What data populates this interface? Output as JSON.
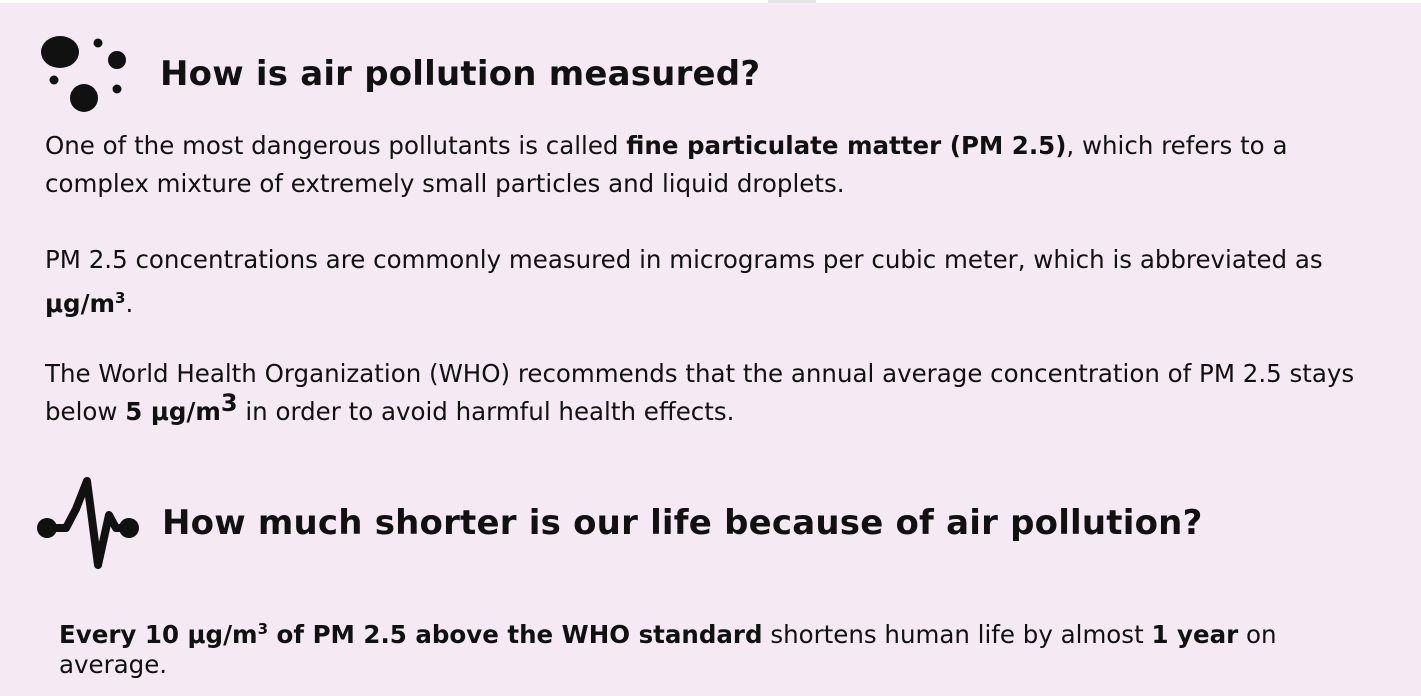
{
  "section1": {
    "icon": "particles-icon",
    "title": "How is air pollution measured?",
    "p1": {
      "t1": "One of the most dangerous pollutants is called ",
      "b1": "fine particulate matter (PM 2.5)",
      "t2": ", which refers to a complex mixture of extremely small particles and liquid droplets."
    },
    "p2": {
      "t1": "PM 2.5 concentrations are commonly measured in micrograms per cubic meter, which is abbreviated as ",
      "unit": "μg/m",
      "sup": "3",
      "t2": "."
    },
    "p3": {
      "t1": "The World Health Organization (WHO) recommends that the annual average concentration of PM 2.5 stays below ",
      "b1": "5 μg/m",
      "sup": "3",
      "t2": " in order to avoid harmful health effects."
    }
  },
  "section2": {
    "icon": "heartbeat-icon",
    "title": "How much shorter is our life because of air pollution?",
    "p1": {
      "b1": "Every 10 μg/m",
      "sup": "3",
      "b2": " of PM 2.5 above the WHO standard",
      "t1": " shortens human life by almost ",
      "b3": "1 year",
      "t2": " on average."
    }
  }
}
